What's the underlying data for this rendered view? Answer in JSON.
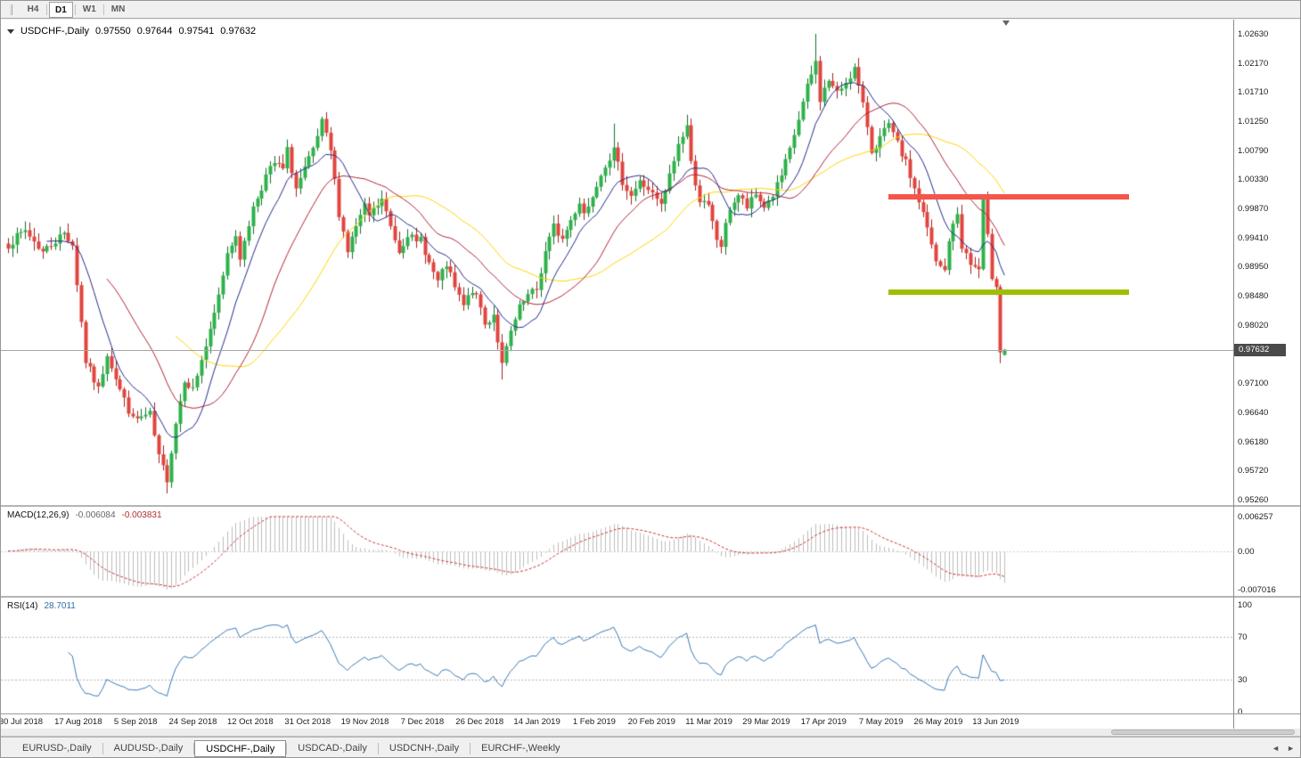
{
  "toolbar": {
    "timeframes": [
      {
        "label": "H4",
        "active": false
      },
      {
        "label": "D1",
        "active": true
      },
      {
        "label": "W1",
        "active": false
      },
      {
        "label": "MN",
        "active": false
      }
    ]
  },
  "chart": {
    "title": "USDCHF-,Daily",
    "open": "0.97550",
    "high": "0.97644",
    "low": "0.97541",
    "close": "0.97632",
    "current_price": "0.97632",
    "price_axis_labels": [
      "1.02630",
      "1.02170",
      "1.01710",
      "1.01250",
      "1.00790",
      "1.00330",
      "0.99870",
      "0.99410",
      "0.98950",
      "0.98480",
      "0.98020",
      "0.97100",
      "0.96640",
      "0.96180",
      "0.95720",
      "0.95260"
    ],
    "colors": {
      "up_fill": "#2eb24a",
      "up_stroke": "#156f2b",
      "down_fill": "#e0453e",
      "down_stroke": "#a2221d",
      "bid_line": "#a6a6a6",
      "badge_bg": "#4a4a4a",
      "macd_hist": "#bdbdbd",
      "macd_signal": "#cc3333",
      "rsi_line": "#3a78b5",
      "level_dotted": "#b5b5b5"
    }
  },
  "macd": {
    "name": "MACD(12,26,9)",
    "value_main": "-0.006084",
    "value_signal": "-0.003831",
    "params": {
      "fast": 12,
      "slow": 26,
      "signal": 9
    },
    "axis_labels": [
      "0.006257",
      "0.00",
      "-0.007016"
    ],
    "range": {
      "max": 0.006257,
      "min": -0.007016
    }
  },
  "rsi": {
    "name": "RSI(14)",
    "value": "28.7011",
    "period": 14,
    "levels": [
      70,
      30
    ],
    "axis_labels": [
      "100",
      "70",
      "30",
      "0"
    ]
  },
  "time_axis": [
    "30 Jul 2018",
    "17 Aug 2018",
    "5 Sep 2018",
    "24 Sep 2018",
    "12 Oct 2018",
    "31 Oct 2018",
    "19 Nov 2018",
    "7 Dec 2018",
    "26 Dec 2018",
    "14 Jan 2019",
    "1 Feb 2019",
    "20 Feb 2019",
    "11 Mar 2019",
    "29 Mar 2019",
    "17 Apr 2019",
    "7 May 2019",
    "26 May 2019",
    "13 Jun 2019"
  ],
  "tabs": {
    "items": [
      {
        "label": "EURUSD-,Daily",
        "active": false
      },
      {
        "label": "AUDUSD-,Daily",
        "active": false
      },
      {
        "label": "USDCHF-,Daily",
        "active": true
      },
      {
        "label": "USDCAD-,Daily",
        "active": false
      },
      {
        "label": "USDCNH-,Daily",
        "active": false
      },
      {
        "label": "EURCHF-,Weekly",
        "active": false
      }
    ],
    "prev": "◄",
    "next": "►"
  },
  "chart_data": {
    "type": "candlestick",
    "symbol": "USDCHF",
    "timeframe": "Daily",
    "title": "USDCHF-,Daily",
    "last_ohlc": {
      "open": 0.9755,
      "high": 0.97644,
      "low": 0.97541,
      "close": 0.97632
    },
    "visible_range": {
      "price_min": 0.9526,
      "price_max": 1.0263,
      "date_start": "30 Jul 2018",
      "date_end": "13 Jun 2019"
    },
    "candle_count": 233,
    "noise_seed": 7,
    "noise_amp": 0.0014,
    "close_waypoints": [
      [
        0,
        0.993
      ],
      [
        4,
        0.9952
      ],
      [
        8,
        0.9918
      ],
      [
        13,
        0.9948
      ],
      [
        15,
        0.993
      ],
      [
        18,
        0.9745
      ],
      [
        21,
        0.97
      ],
      [
        23,
        0.9758
      ],
      [
        26,
        0.97
      ],
      [
        29,
        0.9652
      ],
      [
        33,
        0.966
      ],
      [
        35,
        0.9592
      ],
      [
        37,
        0.956
      ],
      [
        39,
        0.9648
      ],
      [
        41,
        0.9718
      ],
      [
        43,
        0.97
      ],
      [
        45,
        0.9748
      ],
      [
        47,
        0.979
      ],
      [
        49,
        0.9848
      ],
      [
        51,
        0.9918
      ],
      [
        53,
        0.9948
      ],
      [
        54,
        0.99
      ],
      [
        55,
        0.9938
      ],
      [
        57,
        0.9988
      ],
      [
        60,
        1.0038
      ],
      [
        62,
        1.0058
      ],
      [
        64,
        1.0048
      ],
      [
        65,
        1.0078
      ],
      [
        67,
        1.0018
      ],
      [
        69,
        1.0048
      ],
      [
        71,
        1.0078
      ],
      [
        73,
        1.0122
      ],
      [
        75,
        1.0078
      ],
      [
        77,
        0.998
      ],
      [
        79,
        0.992
      ],
      [
        81,
        0.9958
      ],
      [
        83,
        0.9988
      ],
      [
        84,
        0.9975
      ],
      [
        87,
        1.0
      ],
      [
        89,
        0.9958
      ],
      [
        91,
        0.992
      ],
      [
        93,
        0.9948
      ],
      [
        95,
        0.993
      ],
      [
        96,
        0.994
      ],
      [
        98,
        0.99
      ],
      [
        100,
        0.987
      ],
      [
        102,
        0.9898
      ],
      [
        104,
        0.986
      ],
      [
        106,
        0.9832
      ],
      [
        108,
        0.9858
      ],
      [
        110,
        0.983
      ],
      [
        111,
        0.9802
      ],
      [
        113,
        0.982
      ],
      [
        115,
        0.9738
      ],
      [
        117,
        0.979
      ],
      [
        119,
        0.9828
      ],
      [
        121,
        0.9848
      ],
      [
        123,
        0.9858
      ],
      [
        125,
        0.9918
      ],
      [
        127,
        0.9958
      ],
      [
        129,
        0.9938
      ],
      [
        131,
        0.9968
      ],
      [
        133,
        0.9998
      ],
      [
        134,
        0.998
      ],
      [
        135,
        0.999
      ],
      [
        137,
        1.0028
      ],
      [
        139,
        1.0058
      ],
      [
        141,
        1.0078
      ],
      [
        143,
        1.003
      ],
      [
        145,
        1.0008
      ],
      [
        147,
        1.0028
      ],
      [
        149,
        1.0018
      ],
      [
        150,
        1.0008
      ],
      [
        152,
        0.999
      ],
      [
        154,
        1.0038
      ],
      [
        156,
        1.0088
      ],
      [
        158,
        1.0118
      ],
      [
        159,
        1.0058
      ],
      [
        161,
        1.0
      ],
      [
        163,
        0.9988
      ],
      [
        165,
        0.9938
      ],
      [
        166,
        0.9928
      ],
      [
        168,
        0.9988
      ],
      [
        170,
        1.0008
      ],
      [
        172,
        0.9988
      ],
      [
        174,
        1.0008
      ],
      [
        176,
        0.999
      ],
      [
        178,
        1.0008
      ],
      [
        180,
        1.0038
      ],
      [
        182,
        1.0078
      ],
      [
        184,
        1.0128
      ],
      [
        186,
        1.0178
      ],
      [
        188,
        1.0218
      ],
      [
        189,
        1.016
      ],
      [
        191,
        1.019
      ],
      [
        193,
        1.0168
      ],
      [
        195,
        1.0188
      ],
      [
        197,
        1.0208
      ],
      [
        198,
        1.0178
      ],
      [
        200,
        1.0118
      ],
      [
        201,
        1.0078
      ],
      [
        203,
        1.0098
      ],
      [
        205,
        1.0118
      ],
      [
        207,
        1.0088
      ],
      [
        209,
        1.0058
      ],
      [
        211,
        1.0018
      ],
      [
        213,
        0.9978
      ],
      [
        215,
        0.9928
      ],
      [
        216,
        0.99
      ],
      [
        218,
        0.9888
      ],
      [
        219,
        0.9938
      ],
      [
        221,
        0.9978
      ],
      [
        222,
        0.9928
      ],
      [
        224,
        0.9898
      ],
      [
        226,
        0.989
      ],
      [
        227,
        1.0
      ],
      [
        228,
        0.994
      ],
      [
        229,
        0.988
      ],
      [
        230,
        0.9868
      ],
      [
        231,
        0.9762
      ],
      [
        232,
        0.97632
      ]
    ],
    "wick_overrides": {
      "37": {
        "low": 0.9536
      },
      "73": {
        "high": 1.0132
      },
      "115": {
        "low": 0.9716
      },
      "141": {
        "high": 1.0121
      },
      "158": {
        "high": 1.0135
      },
      "188": {
        "high": 1.0263
      },
      "227": {
        "high": 1.0008
      },
      "231": {
        "low": 0.9742
      }
    },
    "moving_averages": [
      {
        "period": 40,
        "color": "#ffd400",
        "type": "sma"
      },
      {
        "period": 24,
        "color": "#b22234",
        "type": "sma"
      },
      {
        "period": 10,
        "color": "#232a8c",
        "type": "sma"
      }
    ],
    "levels": [
      {
        "type": "resistance",
        "price": 1.0005,
        "color": "#f4564a",
        "from_index": 205,
        "to_index": 261
      },
      {
        "type": "support",
        "price": 0.9855,
        "color": "#9dbf00",
        "from_index": 205,
        "to_index": 261
      }
    ],
    "bid_line_price": 0.97632
  }
}
